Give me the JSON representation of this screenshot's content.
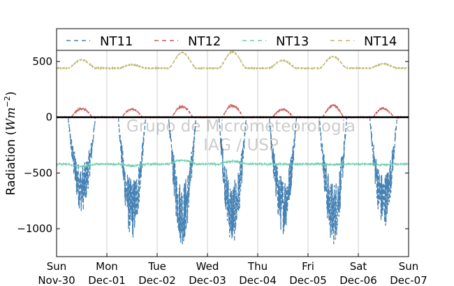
{
  "chart_data": {
    "type": "line",
    "title": "",
    "xlabel": "",
    "ylabel": "Radiation ($Wm^{-2}$)",
    "ylabel_display": {
      "prefix": "Radiation (",
      "math": "Wm",
      "sup": "−2",
      "suffix": ")"
    },
    "ylim": [
      -1250,
      600
    ],
    "yticks": [
      500,
      0,
      -500,
      -1000
    ],
    "ytick_labels": [
      "500",
      "0",
      "−500",
      "−1000"
    ],
    "xlim": [
      "2014-11-30",
      "2014-12-07"
    ],
    "xticks": [
      {
        "x": "2014-11-30",
        "line1": "Sun",
        "line2": "Nov-30"
      },
      {
        "x": "2014-12-01",
        "line1": "Mon",
        "line2": "Dec-01"
      },
      {
        "x": "2014-12-02",
        "line1": "Tue",
        "line2": "Dec-02"
      },
      {
        "x": "2014-12-03",
        "line1": "Wed",
        "line2": "Dec-03"
      },
      {
        "x": "2014-12-04",
        "line1": "Thu",
        "line2": "Dec-04"
      },
      {
        "x": "2014-12-05",
        "line1": "Fri",
        "line2": "Dec-05"
      },
      {
        "x": "2014-12-06",
        "line1": "Sat",
        "line2": "Dec-06"
      },
      {
        "x": "2014-12-07",
        "line1": "Sun",
        "line2": "Dec-07"
      }
    ],
    "vgrid": true,
    "hgrid": false,
    "zero_line": true,
    "legend": {
      "placement": "top",
      "columns": 4
    },
    "watermark": [
      "Grupo de Micrometeorologia",
      "IAG / USP"
    ],
    "series": [
      {
        "name": "NT11",
        "color": "#4682b4",
        "style": "dashed",
        "night_value": 0,
        "day_trough": [
          -850,
          -1100,
          -1150,
          -1150,
          -1050,
          -1150,
          -1000
        ],
        "noise": 0.5
      },
      {
        "name": "NT12",
        "color": "#cd5c5c",
        "style": "dashed",
        "night_value": 0,
        "day_peak": [
          90,
          80,
          110,
          120,
          80,
          120,
          90
        ],
        "noise": 0.25
      },
      {
        "name": "NT13",
        "color": "#66cdaa",
        "style": "dashed",
        "night_value": -420,
        "day_bump": [
          -20,
          -15,
          35,
          25,
          0,
          -5,
          -5
        ],
        "noise": 0.05
      },
      {
        "name": "NT14",
        "color": "#bdb76b",
        "style": "dashed",
        "night_value": 440,
        "day_peak": [
          515,
          470,
          580,
          585,
          510,
          545,
          480
        ],
        "noise": 0.02
      }
    ],
    "daylight_hours": [
      5.5,
      18.5
    ],
    "samples_per_hour": 12
  }
}
